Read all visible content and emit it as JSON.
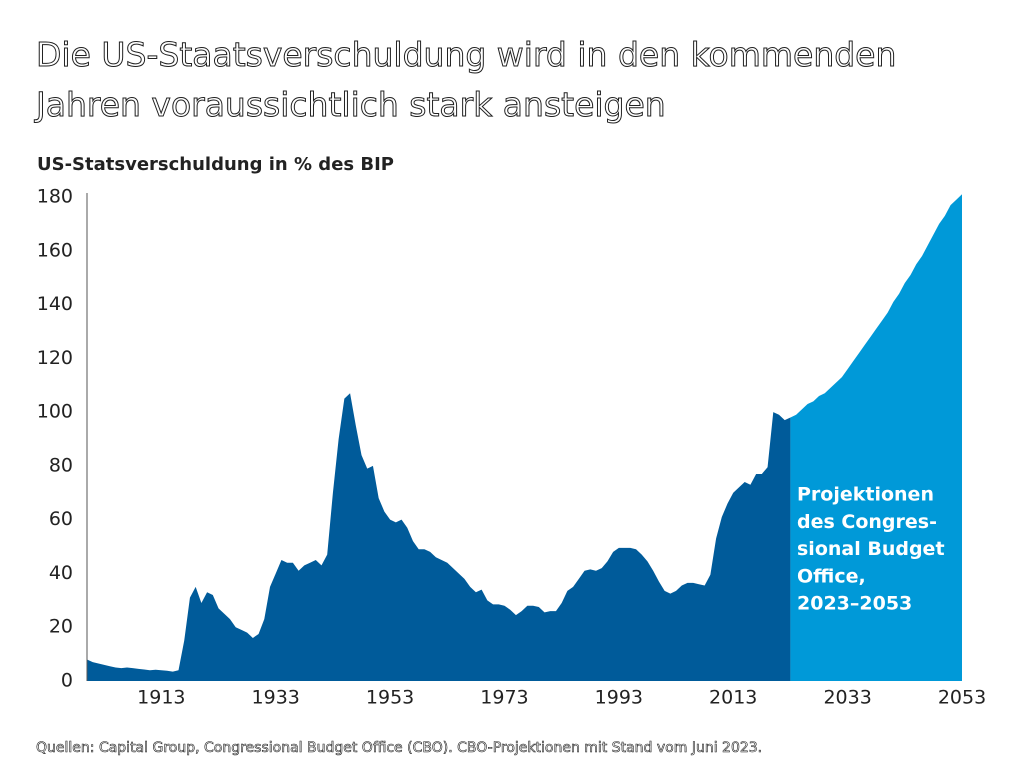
{
  "chart_data": {
    "type": "area",
    "title": "Die US-Staatsverschuldung wird in den kommenden Jahren voraussichtlich stark ansteigen",
    "y_label": "US-Statsverschuldung in % des BIP",
    "annotation": [
      "Projektionen",
      "des Congres-",
      "sional Budget",
      "Office,",
      "2023–2053"
    ],
    "source": "Quellen: Capital Group, Congressional Budget Office (CBO). CBO-Projektionen mit Stand vom Juni 2023.",
    "xlim": [
      1900,
      2053
    ],
    "xticks": [
      1913,
      1933,
      1953,
      1973,
      1993,
      2013,
      2033,
      2053
    ],
    "ylim": [
      0,
      180
    ],
    "yticks": [
      0,
      20,
      40,
      60,
      80,
      100,
      120,
      140,
      160,
      180
    ],
    "grid": false,
    "series": [
      {
        "color": "#005b9a",
        "x": [
          1900,
          1901,
          1902,
          1903,
          1904,
          1905,
          1906,
          1907,
          1908,
          1909,
          1910,
          1911,
          1912,
          1913,
          1914,
          1915,
          1916,
          1917,
          1918,
          1919,
          1920,
          1921,
          1922,
          1923,
          1924,
          1925,
          1926,
          1927,
          1928,
          1929,
          1930,
          1931,
          1932,
          1933,
          1934,
          1935,
          1936,
          1937,
          1938,
          1939,
          1940,
          1941,
          1942,
          1943,
          1944,
          1945,
          1946,
          1947,
          1948,
          1949,
          1950,
          1951,
          1952,
          1953,
          1954,
          1955,
          1956,
          1957,
          1958,
          1959,
          1960,
          1961,
          1962,
          1963,
          1964,
          1965,
          1966,
          1967,
          1968,
          1969,
          1970,
          1971,
          1972,
          1973,
          1974,
          1975,
          1976,
          1977,
          1978,
          1979,
          1980,
          1981,
          1982,
          1983,
          1984,
          1985,
          1986,
          1987,
          1988,
          1989,
          1990,
          1991,
          1992,
          1993,
          1994,
          1995,
          1996,
          1997,
          1998,
          1999,
          2000,
          2001,
          2002,
          2003,
          2004,
          2005,
          2006,
          2007,
          2008,
          2009,
          2010,
          2011,
          2012,
          2013,
          2014,
          2015,
          2016,
          2017,
          2018,
          2019,
          2020,
          2021,
          2022,
          2023
        ],
        "values": [
          8,
          7,
          6.5,
          6,
          5.5,
          5,
          4.8,
          5,
          4.8,
          4.5,
          4.3,
          4,
          4.2,
          4,
          3.8,
          3.5,
          4,
          15,
          31,
          35,
          29,
          33,
          32,
          27,
          25,
          23,
          20,
          19,
          18,
          16,
          17.5,
          23,
          35,
          40,
          45,
          44,
          44,
          41,
          43,
          44,
          45,
          43,
          47,
          70,
          90,
          105,
          107,
          95,
          84,
          79,
          80,
          68,
          63,
          60,
          59,
          60,
          57,
          52,
          49,
          49,
          48,
          46,
          45,
          44,
          42,
          40,
          38,
          35,
          33,
          34,
          30,
          28.5,
          28.5,
          28,
          26.5,
          24.5,
          26,
          28,
          28,
          27.5,
          25.5,
          26,
          26,
          29,
          33.5,
          35,
          38,
          41,
          41.5,
          41,
          42,
          44.5,
          48,
          49.5,
          49.5,
          49.5,
          49,
          47,
          44.5,
          41,
          37,
          33.5,
          32.5,
          33.5,
          35.5,
          36.5,
          36.5,
          36,
          35.5,
          39.5,
          53,
          61,
          66,
          70,
          72,
          74,
          73,
          77,
          77,
          79.5,
          100,
          99,
          97,
          98
        ]
      },
      {
        "color": "#0099d8",
        "x": [
          2023,
          2024,
          2025,
          2026,
          2027,
          2028,
          2029,
          2030,
          2031,
          2032,
          2033,
          2034,
          2035,
          2036,
          2037,
          2038,
          2039,
          2040,
          2041,
          2042,
          2043,
          2044,
          2045,
          2046,
          2047,
          2048,
          2049,
          2050,
          2051,
          2052,
          2053
        ],
        "values": [
          98,
          99,
          101,
          103,
          104,
          106,
          107,
          109,
          111,
          113,
          116,
          119,
          122,
          125,
          128,
          131,
          134,
          137,
          141,
          144,
          148,
          151,
          155,
          158,
          162,
          166,
          170,
          173,
          177,
          179,
          181
        ]
      }
    ]
  }
}
